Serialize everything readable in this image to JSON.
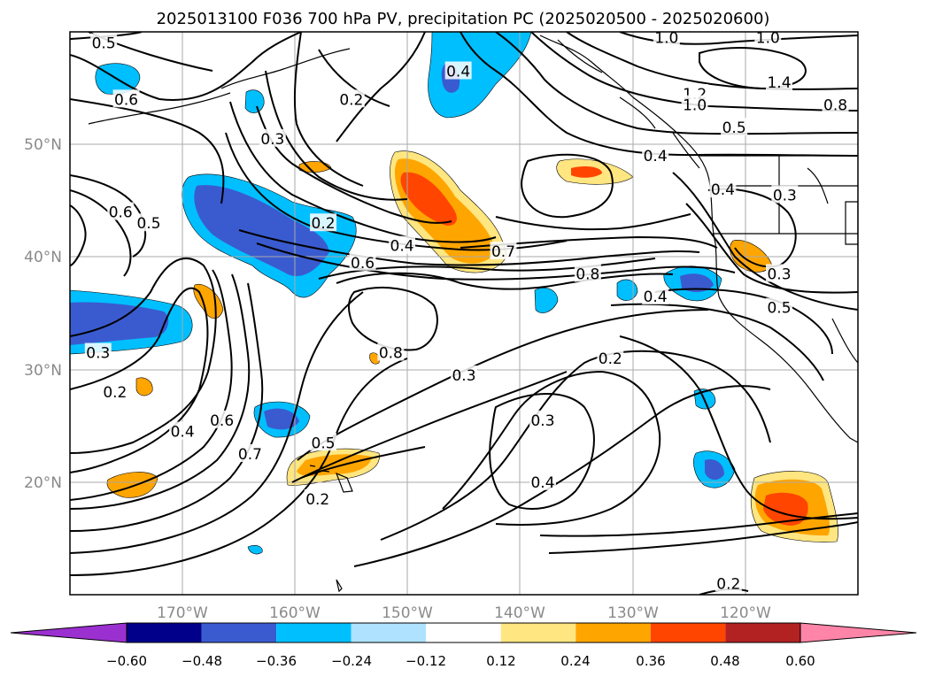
{
  "title": "2025013100 F036 700 hPa PV, precipitation PC (2025020500 - 2025020600)",
  "map": {
    "lon_range": [
      -180,
      -110
    ],
    "lat_range": [
      10,
      60
    ],
    "lon_ticks": [
      {
        "lon": -170,
        "label": "170°W"
      },
      {
        "lon": -160,
        "label": "160°W"
      },
      {
        "lon": -150,
        "label": "150°W"
      },
      {
        "lon": -140,
        "label": "140°W"
      },
      {
        "lon": -130,
        "label": "130°W"
      },
      {
        "lon": -120,
        "label": "120°W"
      }
    ],
    "lat_ticks": [
      {
        "lat": 50,
        "label": "50°N"
      },
      {
        "lat": 40,
        "label": "40°N"
      },
      {
        "lat": 30,
        "label": "30°N"
      },
      {
        "lat": 20,
        "label": "20°N"
      }
    ],
    "grid": true
  },
  "colorbar": {
    "levels": [
      "−0.60",
      "−0.48",
      "−0.36",
      "−0.24",
      "−0.12",
      "0.12",
      "0.24",
      "0.36",
      "0.48",
      "0.60"
    ],
    "colors": [
      "#9b30d0",
      "#00008b",
      "#3a5bd0",
      "#00bfff",
      "#aee2ff",
      "#ffffff",
      "#ffe680",
      "#ffa500",
      "#ff4500",
      "#b22222",
      "#ff85a8"
    ],
    "extend": "both"
  },
  "colors": {
    "lightblue": "#aee2ff",
    "blue": "#00bfff",
    "royal": "#3a5bd0",
    "yellow": "#ffe680",
    "orange": "#ffa500",
    "red": "#ff4500"
  },
  "contour_labels": [
    {
      "text": "0.5",
      "lon": -177,
      "lat": 59
    },
    {
      "text": "0.6",
      "lon": -175,
      "lat": 54
    },
    {
      "text": "0.2",
      "lon": -155,
      "lat": 54
    },
    {
      "text": "0.3",
      "lon": -162,
      "lat": 50.5
    },
    {
      "text": "0.4",
      "lon": -145.5,
      "lat": 56.5
    },
    {
      "text": "1.0",
      "lon": -127,
      "lat": 59.5
    },
    {
      "text": "1.0",
      "lon": -118,
      "lat": 59.5
    },
    {
      "text": "1.2",
      "lon": -124.5,
      "lat": 54.5
    },
    {
      "text": "1.0",
      "lon": -124.5,
      "lat": 53.5
    },
    {
      "text": "1.4",
      "lon": -117,
      "lat": 55.5
    },
    {
      "text": "0.8",
      "lon": -112,
      "lat": 53.5
    },
    {
      "text": "0.5",
      "lon": -121,
      "lat": 51.5
    },
    {
      "text": "0.4",
      "lon": -128,
      "lat": 49
    },
    {
      "text": "0.4",
      "lon": -122,
      "lat": 46
    },
    {
      "text": "0.3",
      "lon": -116.5,
      "lat": 45.5
    },
    {
      "text": "0.6",
      "lon": -175.5,
      "lat": 44
    },
    {
      "text": "0.5",
      "lon": -173,
      "lat": 43
    },
    {
      "text": "0.2",
      "lon": -157.5,
      "lat": 43
    },
    {
      "text": "0.4",
      "lon": -150.5,
      "lat": 41
    },
    {
      "text": "0.6",
      "lon": -154,
      "lat": 39.5
    },
    {
      "text": "0.7",
      "lon": -141.5,
      "lat": 40.5
    },
    {
      "text": "0.8",
      "lon": -134,
      "lat": 38.5
    },
    {
      "text": "0.4",
      "lon": -128,
      "lat": 36.5
    },
    {
      "text": "0.3",
      "lon": -117,
      "lat": 38.5
    },
    {
      "text": "0.5",
      "lon": -117,
      "lat": 35.5
    },
    {
      "text": "0.8",
      "lon": -151.5,
      "lat": 31.5
    },
    {
      "text": "0.3",
      "lon": -177.5,
      "lat": 31.5
    },
    {
      "text": "0.3",
      "lon": -145,
      "lat": 29.5
    },
    {
      "text": "0.2",
      "lon": -132,
      "lat": 31
    },
    {
      "text": "0.2",
      "lon": -176,
      "lat": 28
    },
    {
      "text": "0.3",
      "lon": -138,
      "lat": 25.5
    },
    {
      "text": "0.4",
      "lon": -170,
      "lat": 24.5
    },
    {
      "text": "0.6",
      "lon": -166.5,
      "lat": 25.5
    },
    {
      "text": "0.7",
      "lon": -164,
      "lat": 22.5
    },
    {
      "text": "0.5",
      "lon": -157.5,
      "lat": 23.5
    },
    {
      "text": "0.2",
      "lon": -158,
      "lat": 18.5
    },
    {
      "text": "0.4",
      "lon": -138,
      "lat": 20
    },
    {
      "text": "0.2",
      "lon": -121.5,
      "lat": 11
    }
  ]
}
